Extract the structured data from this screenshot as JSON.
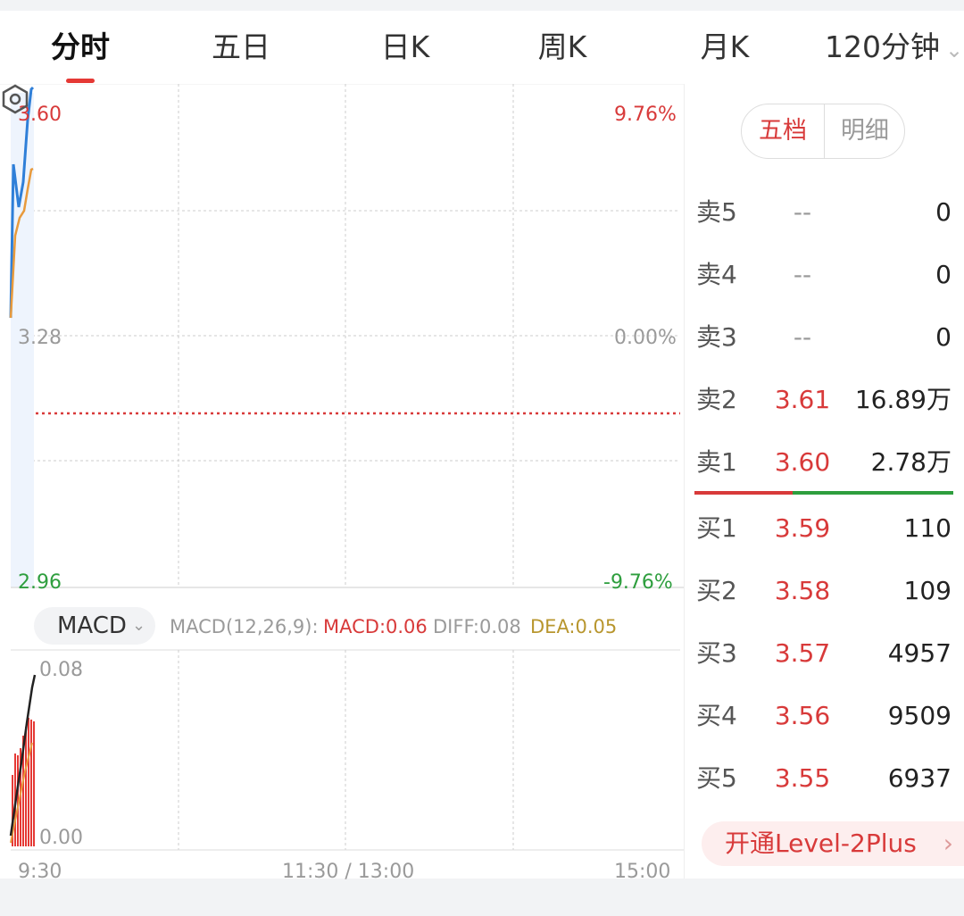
{
  "tabs": [
    {
      "label": "分时",
      "active": true
    },
    {
      "label": "五日",
      "active": false
    },
    {
      "label": "日K",
      "active": false
    },
    {
      "label": "周K",
      "active": false
    },
    {
      "label": "月K",
      "active": false
    },
    {
      "label": "120分钟",
      "active": false
    }
  ],
  "price_axis": {
    "high": "3.60",
    "mid": "3.28",
    "low": "2.96",
    "high_pct": "9.76%",
    "mid_pct": "0.00%",
    "low_pct": "-9.76%"
  },
  "indicator": {
    "selected": "MACD",
    "params": "MACD(12,26,9):",
    "macd": "MACD:0.06",
    "diff": "DIFF:0.08",
    "dea": "DEA:0.05",
    "axis_top": "0.08",
    "axis_bottom": "0.00"
  },
  "time_axis": [
    "9:30",
    "11:30 / 13:00",
    "15:00"
  ],
  "orderbook_tabs": [
    "五档",
    "明细"
  ],
  "orderbook": {
    "asks": [
      {
        "label": "卖5",
        "price": "--",
        "volume": "0"
      },
      {
        "label": "卖4",
        "price": "--",
        "volume": "0"
      },
      {
        "label": "卖3",
        "price": "--",
        "volume": "0"
      },
      {
        "label": "卖2",
        "price": "3.61",
        "volume": "16.89万"
      },
      {
        "label": "卖1",
        "price": "3.60",
        "volume": "2.78万"
      }
    ],
    "bids": [
      {
        "label": "买1",
        "price": "3.59",
        "volume": "110"
      },
      {
        "label": "买2",
        "price": "3.58",
        "volume": "109"
      },
      {
        "label": "买3",
        "price": "3.57",
        "volume": "4957"
      },
      {
        "label": "买4",
        "price": "3.56",
        "volume": "9509"
      },
      {
        "label": "买5",
        "price": "3.55",
        "volume": "6937"
      }
    ]
  },
  "upgrade_label": "开通Level-2Plus",
  "colors": {
    "up": "#d83a3a",
    "down": "#2e9e3e",
    "price_line": "#2f7fd8",
    "avg_line": "#e89a3c",
    "dea": "#b8962e"
  },
  "icons": {
    "dropdown": "chevron-down-icon",
    "settings": "settings-hexagon-icon",
    "more": "chevron-right-icon"
  }
}
